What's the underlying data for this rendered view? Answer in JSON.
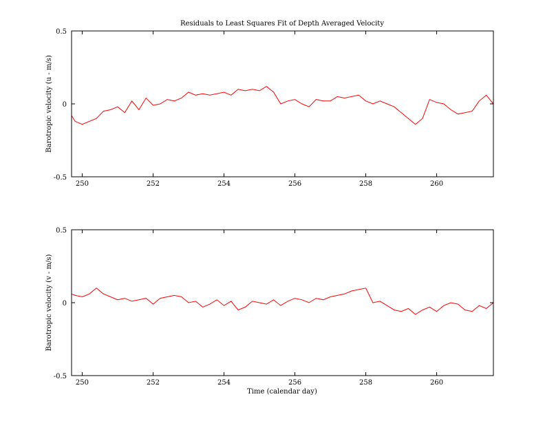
{
  "chart_data": [
    {
      "type": "line",
      "title": "Residuals to Least Squares Fit of Depth Averaged Velocity",
      "xlabel": "",
      "ylabel": "Barotropic velocity (u - m/s)",
      "xlim": [
        249.7,
        261.6
      ],
      "ylim": [
        -0.5,
        0.5
      ],
      "xticks": [
        "250",
        "252",
        "254",
        "256",
        "258",
        "260"
      ],
      "yticks": [
        "-0.5",
        "0",
        "0.5"
      ],
      "grid": false,
      "series": [
        {
          "color": "#ff0000",
          "x": [
            249.7,
            249.8,
            250.0,
            250.2,
            250.4,
            250.6,
            250.8,
            251.0,
            251.2,
            251.4,
            251.6,
            251.8,
            252.0,
            252.2,
            252.4,
            252.6,
            252.8,
            253.0,
            253.2,
            253.4,
            253.6,
            253.8,
            254.0,
            254.2,
            254.4,
            254.6,
            254.8,
            255.0,
            255.2,
            255.4,
            255.6,
            255.8,
            256.0,
            256.2,
            256.4,
            256.6,
            256.8,
            257.0,
            257.2,
            257.4,
            257.6,
            257.8,
            258.0,
            258.2,
            258.4,
            258.6,
            258.8,
            259.0,
            259.2,
            259.4,
            259.6,
            259.8,
            260.0,
            260.2,
            260.4,
            260.6,
            260.8,
            261.0,
            261.2,
            261.4,
            261.6
          ],
          "y": [
            -0.08,
            -0.12,
            -0.14,
            -0.12,
            -0.1,
            -0.05,
            -0.04,
            -0.02,
            -0.06,
            0.02,
            -0.04,
            0.04,
            -0.01,
            0.0,
            0.03,
            0.02,
            0.04,
            0.08,
            0.06,
            0.07,
            0.06,
            0.07,
            0.08,
            0.06,
            0.1,
            0.09,
            0.1,
            0.09,
            0.12,
            0.08,
            0.0,
            0.02,
            0.03,
            0.0,
            -0.02,
            0.03,
            0.02,
            0.02,
            0.05,
            0.04,
            0.05,
            0.06,
            0.02,
            0.0,
            0.02,
            0.0,
            -0.02,
            -0.06,
            -0.1,
            -0.14,
            -0.1,
            0.03,
            0.01,
            0.0,
            -0.04,
            -0.07,
            -0.06,
            -0.05,
            0.02,
            0.06,
            0.0
          ]
        }
      ]
    },
    {
      "type": "line",
      "title": "",
      "xlabel": "Time (calendar day)",
      "ylabel": "Barotropic velocity (v - m/s)",
      "xlim": [
        249.7,
        261.6
      ],
      "ylim": [
        -0.5,
        0.5
      ],
      "xticks": [
        "250",
        "252",
        "254",
        "256",
        "258",
        "260"
      ],
      "yticks": [
        "-0.5",
        "0",
        "0.5"
      ],
      "grid": false,
      "series": [
        {
          "color": "#ff0000",
          "x": [
            249.7,
            249.8,
            250.0,
            250.2,
            250.4,
            250.6,
            250.8,
            251.0,
            251.2,
            251.4,
            251.6,
            251.8,
            252.0,
            252.2,
            252.4,
            252.6,
            252.8,
            253.0,
            253.2,
            253.4,
            253.6,
            253.8,
            254.0,
            254.2,
            254.4,
            254.6,
            254.8,
            255.0,
            255.2,
            255.4,
            255.6,
            255.8,
            256.0,
            256.2,
            256.4,
            256.6,
            256.8,
            257.0,
            257.2,
            257.4,
            257.6,
            257.8,
            258.0,
            258.2,
            258.4,
            258.6,
            258.8,
            259.0,
            259.2,
            259.4,
            259.6,
            259.8,
            260.0,
            260.2,
            260.4,
            260.6,
            260.8,
            261.0,
            261.2,
            261.4,
            261.6
          ],
          "y": [
            0.06,
            0.05,
            0.04,
            0.06,
            0.1,
            0.06,
            0.04,
            0.02,
            0.03,
            0.01,
            0.02,
            0.03,
            -0.01,
            0.03,
            0.04,
            0.05,
            0.04,
            0.0,
            0.01,
            -0.03,
            -0.01,
            0.02,
            -0.02,
            0.01,
            -0.05,
            -0.03,
            0.01,
            0.0,
            -0.01,
            0.02,
            -0.02,
            0.01,
            0.03,
            0.02,
            0.0,
            0.03,
            0.02,
            0.04,
            0.05,
            0.06,
            0.08,
            0.09,
            0.1,
            0.0,
            0.01,
            -0.02,
            -0.05,
            -0.06,
            -0.04,
            -0.08,
            -0.05,
            -0.03,
            -0.06,
            -0.02,
            0.0,
            -0.01,
            -0.05,
            -0.06,
            -0.02,
            -0.04,
            0.0
          ]
        }
      ]
    }
  ]
}
